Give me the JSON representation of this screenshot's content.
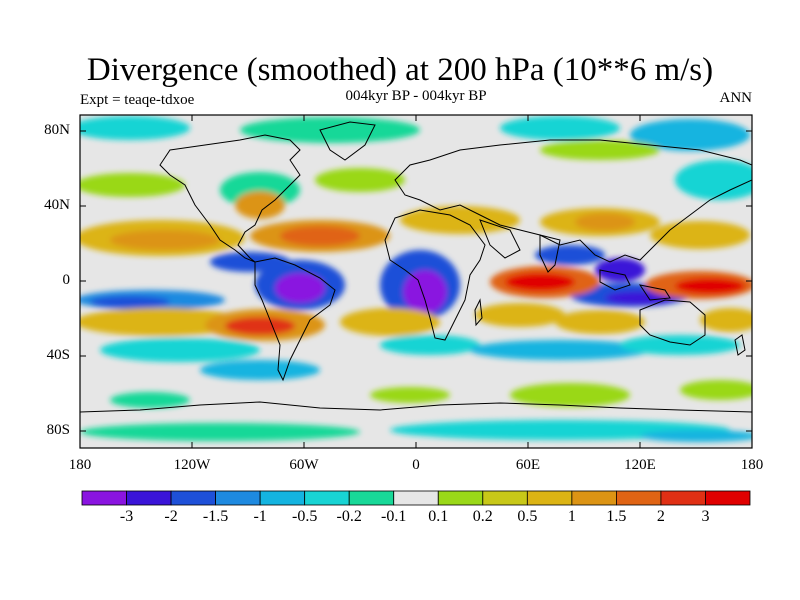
{
  "title": "Divergence (smoothed) at 200 hPa (10**6 m/s)",
  "subtitle": "004kyr BP - 004kyr BP",
  "expt": "Expt = teaqe-tdxoe",
  "period": "ANN",
  "lat_ticks": [
    "80N",
    "40N",
    "0",
    "40S",
    "80S"
  ],
  "lon_ticks": [
    "180",
    "120W",
    "60W",
    "0",
    "60E",
    "120E",
    "180"
  ],
  "colorbar": {
    "colors": [
      "#8a14e0",
      "#3a14d8",
      "#1e50d8",
      "#1e8ae0",
      "#14b4e0",
      "#18d4d4",
      "#18d898",
      "#e6e6e6",
      "#9ad818",
      "#c8c818",
      "#dcb414",
      "#dc9414",
      "#e06414",
      "#e03014",
      "#e00000"
    ],
    "labels": [
      "-3",
      "-2",
      "-1.5",
      "-1",
      "-0.5",
      "-0.2",
      "-0.1",
      "0.1",
      "0.2",
      "0.5",
      "1",
      "1.5",
      "2",
      "3"
    ]
  },
  "field_colors": {
    "neutral": "#e6e6e6",
    "land_line": "#000000"
  }
}
